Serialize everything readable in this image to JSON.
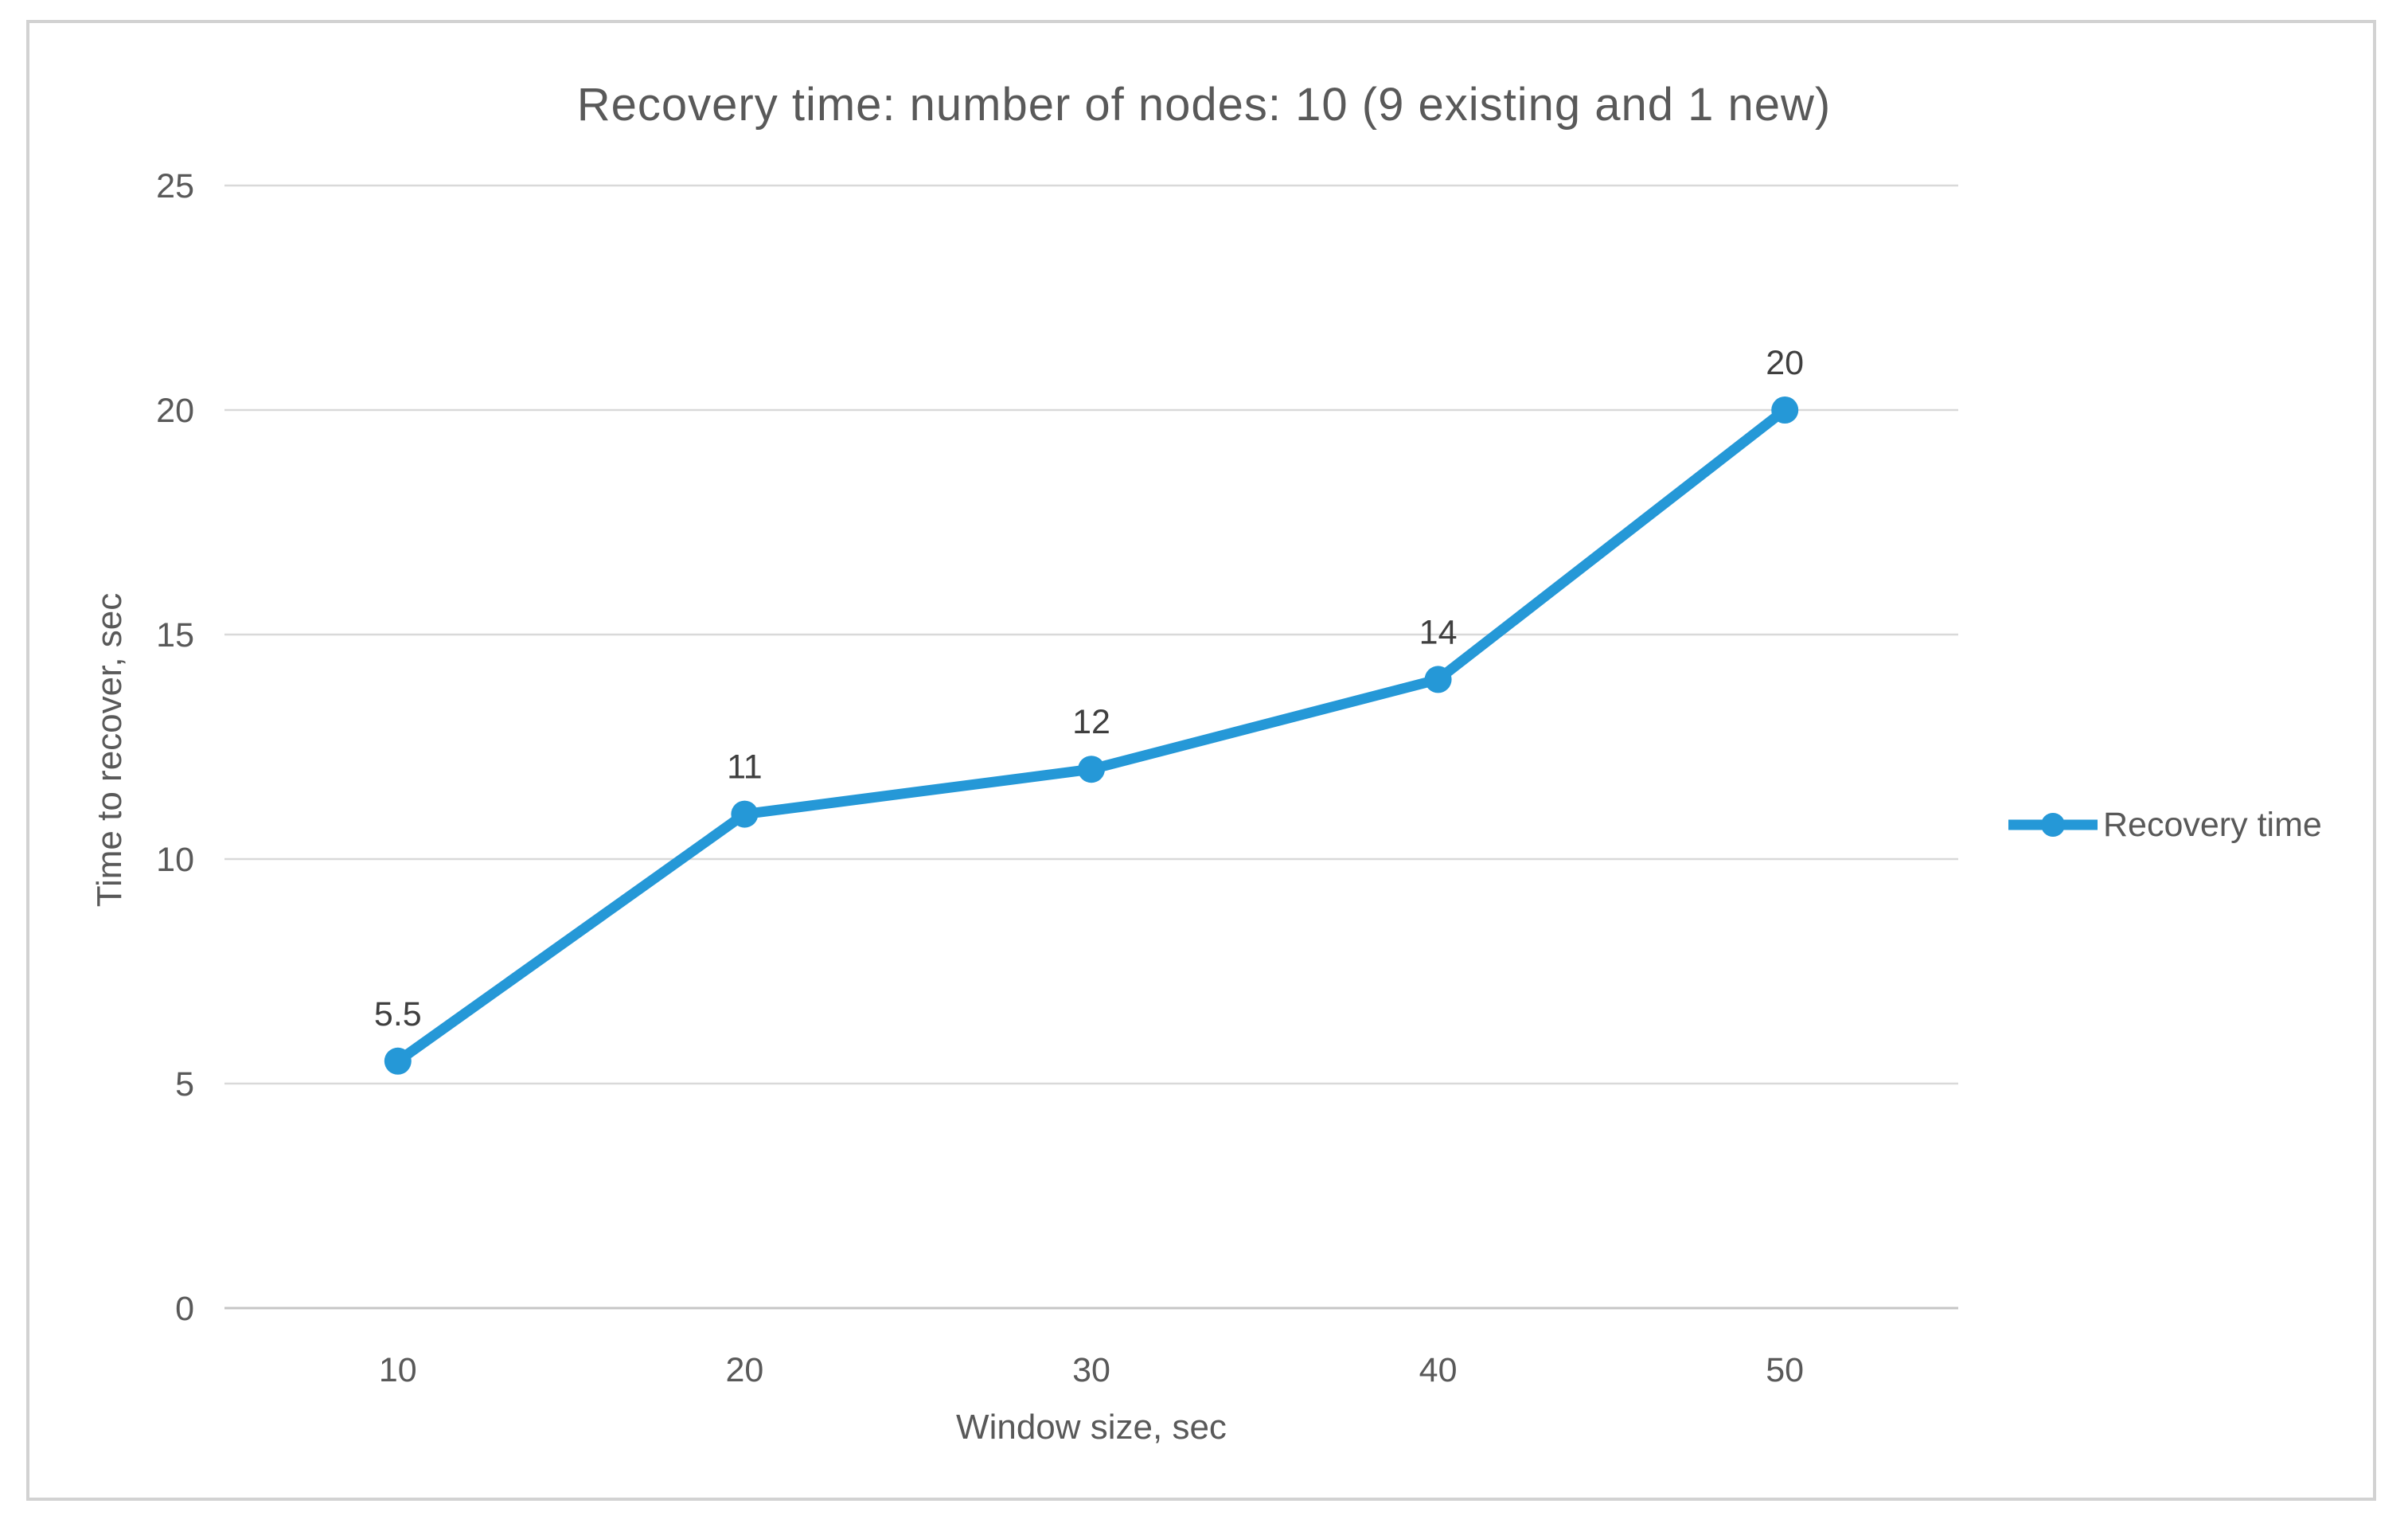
{
  "chart_data": {
    "type": "line",
    "title": "Recovery time: number of nodes: 10 (9 existing and 1 new)",
    "xlabel": "Window size, sec",
    "ylabel": "Time to recover, sec",
    "categories": [
      "10",
      "20",
      "30",
      "40",
      "50"
    ],
    "series": [
      {
        "name": "Recovery time",
        "values": [
          5.5,
          11,
          12,
          14,
          20
        ],
        "data_labels": [
          "5.5",
          "11",
          "12",
          "14",
          "20"
        ],
        "color": "#2598D7",
        "marker": "circle"
      }
    ],
    "y_ticks": [
      0,
      5,
      10,
      15,
      20,
      25
    ],
    "ylim": [
      0,
      25
    ],
    "grid": true,
    "legend_position": "right"
  },
  "legend": {
    "label": "Recovery time"
  },
  "colors": {
    "background": "#FFFFFF",
    "series_line": "#2598D7",
    "gridline": "#D9D9D9",
    "zero_line": "#C6C6C6",
    "frame_border": "#D2D2D2",
    "title_text": "#595959",
    "axis_text": "#595959",
    "data_label_text": "#3F3F3F"
  }
}
